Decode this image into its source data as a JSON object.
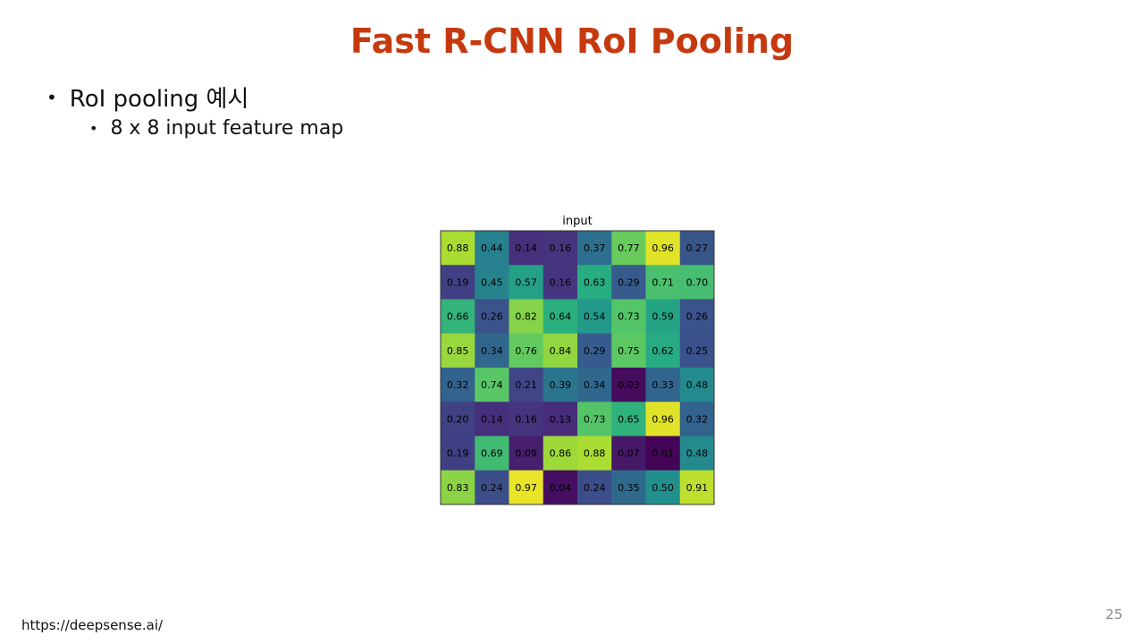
{
  "slide": {
    "title": "Fast R-CNN RoI Pooling",
    "bullets": {
      "level1": "RoI pooling 예시",
      "level2": "8 x 8 input feature map"
    },
    "footer": "https://deepsense.ai/",
    "page_number": "25"
  },
  "chart_data": {
    "type": "heatmap",
    "title": "input",
    "rows": 8,
    "cols": 8,
    "colormap": "viridis",
    "vmin": 0.0,
    "vmax": 1.0,
    "values": [
      [
        0.88,
        0.44,
        0.14,
        0.16,
        0.37,
        0.77,
        0.96,
        0.27
      ],
      [
        0.19,
        0.45,
        0.57,
        0.16,
        0.63,
        0.29,
        0.71,
        0.7
      ],
      [
        0.66,
        0.26,
        0.82,
        0.64,
        0.54,
        0.73,
        0.59,
        0.26
      ],
      [
        0.85,
        0.34,
        0.76,
        0.84,
        0.29,
        0.75,
        0.62,
        0.25
      ],
      [
        0.32,
        0.74,
        0.21,
        0.39,
        0.34,
        0.03,
        0.33,
        0.48
      ],
      [
        0.2,
        0.14,
        0.16,
        0.13,
        0.73,
        0.65,
        0.96,
        0.32
      ],
      [
        0.19,
        0.69,
        0.09,
        0.86,
        0.88,
        0.07,
        0.01,
        0.48
      ],
      [
        0.83,
        0.24,
        0.97,
        0.04,
        0.24,
        0.35,
        0.5,
        0.91
      ]
    ],
    "labels": [
      [
        "0.88",
        "0.44",
        "0.14",
        "0.16",
        "0.37",
        "0.77",
        "0.96",
        "0.27"
      ],
      [
        "0.19",
        "0.45",
        "0.57",
        "0.16",
        "0.63",
        "0.29",
        "0.71",
        "0.70"
      ],
      [
        "0.66",
        "0.26",
        "0.82",
        "0.64",
        "0.54",
        "0.73",
        "0.59",
        "0.26"
      ],
      [
        "0.85",
        "0.34",
        "0.76",
        "0.84",
        "0.29",
        "0.75",
        "0.62",
        "0.25"
      ],
      [
        "0.32",
        "0.74",
        "0.21",
        "0.39",
        "0.34",
        "0.03",
        "0.33",
        "0.48"
      ],
      [
        "0.20",
        "0.14",
        "0.16",
        "0.13",
        "0.73",
        "0.65",
        "0.96",
        "0.32"
      ],
      [
        "0.19",
        "0.69",
        "0.09",
        "0.86",
        "0.88",
        "0.07",
        "0.01",
        "0.48"
      ],
      [
        "0.83",
        "0.24",
        "0.97",
        "0.04",
        "0.24",
        "0.35",
        "0.50",
        "0.91"
      ]
    ],
    "grid": false,
    "legend": "none"
  }
}
